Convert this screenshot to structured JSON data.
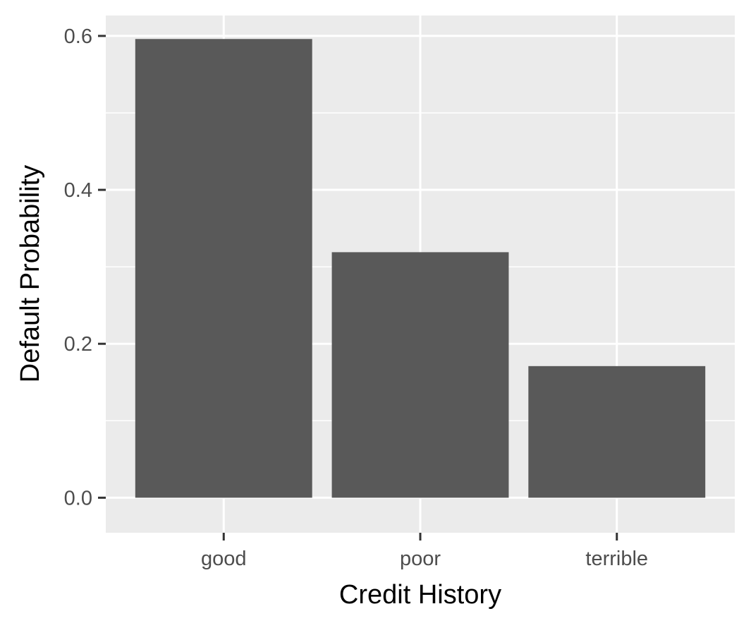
{
  "chart_data": {
    "type": "bar",
    "title": "",
    "xlabel": "Credit History",
    "ylabel": "Default Probability",
    "categories": [
      "good",
      "poor",
      "terrible"
    ],
    "values": [
      0.596,
      0.319,
      0.171
    ],
    "ylim": [
      -0.0455,
      0.6265
    ],
    "yticks": [
      0.0,
      0.2,
      0.4,
      0.6
    ],
    "ytick_labels": [
      "0.0",
      "0.2",
      "0.4",
      "0.6"
    ],
    "grid": true,
    "legend": "none",
    "colors": {
      "panel_background": "#ebebeb",
      "grid": "#ffffff",
      "bar_fill": "#595959",
      "tick_mark": "#333333",
      "tick_label": "#4d4d4d",
      "axis_title": "#000000"
    }
  }
}
